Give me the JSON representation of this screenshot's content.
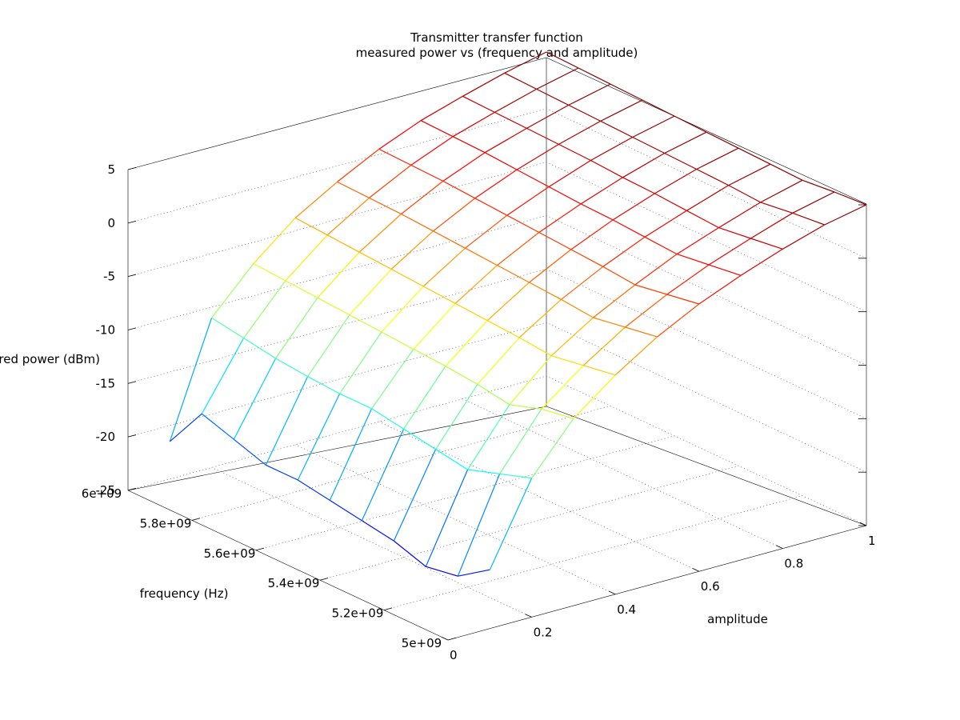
{
  "chart_data": {
    "type": "surface",
    "title": "Transmitter transfer function",
    "subtitle": "measured power vs (frequency and amplitude)",
    "xlabel": "amplitude",
    "ylabel": "frequency (Hz)",
    "zlabel": "measured power (dBm)",
    "xlim": [
      0,
      1
    ],
    "ylim": [
      5000000000,
      6000000000
    ],
    "zlim": [
      -25,
      5
    ],
    "x_ticks": [
      "0",
      "0.2",
      "0.4",
      "0.6",
      "0.8",
      "1"
    ],
    "y_ticks": [
      "5e+09",
      "5.2e+09",
      "5.4e+09",
      "5.6e+09",
      "5.8e+09",
      "6e+09"
    ],
    "z_ticks": [
      "5",
      "0",
      "-5",
      "-10",
      "-15",
      "-20",
      "-25"
    ],
    "colormap": "jet",
    "grid": true,
    "amplitudes": [
      0.1,
      0.2,
      0.3,
      0.4,
      0.5,
      0.6,
      0.7,
      0.8,
      0.9,
      1.0
    ],
    "frequencies": [
      5000000000,
      5100000000,
      5200000000,
      5300000000,
      5400000000,
      5500000000,
      5600000000,
      5700000000,
      5800000000,
      5900000000,
      6000000000
    ],
    "power_dbm": [
      [
        -19.5,
        -12,
        -7.5,
        -4.5,
        -2,
        0,
        1.6,
        3,
        4.2,
        5
      ],
      [
        -21.5,
        -13,
        -8,
        -5,
        -2.5,
        -0.5,
        1.2,
        2.6,
        3.9,
        4.8
      ],
      [
        -22,
        -14,
        -9,
        -5.5,
        -3,
        -1,
        0.8,
        2.2,
        3.5,
        4.5
      ],
      [
        -21,
        -13.5,
        -8.5,
        -5.2,
        -2.7,
        -0.7,
        1,
        2.4,
        3.7,
        4.6
      ],
      [
        -20.5,
        -13,
        -8.2,
        -5,
        -2.5,
        -0.5,
        1.2,
        2.6,
        3.8,
        4.7
      ],
      [
        -20,
        -12.5,
        -8,
        -4.8,
        -2.3,
        -0.3,
        1.3,
        2.7,
        3.9,
        4.8
      ],
      [
        -19.5,
        -12.5,
        -7.8,
        -4.6,
        -2.1,
        -0.1,
        1.5,
        2.9,
        4,
        4.9
      ],
      [
        -19.5,
        -12.3,
        -7.6,
        -4.4,
        -1.9,
        0.1,
        1.7,
        3,
        4.1,
        5
      ],
      [
        -18.5,
        -12,
        -7.4,
        -4.2,
        -1.7,
        0.3,
        1.9,
        3.1,
        4.2,
        5.1
      ],
      [
        -17.5,
        -11.5,
        -7.2,
        -4,
        -1.6,
        0.4,
        2,
        3.2,
        4.3,
        5.2
      ],
      [
        -21.5,
        -11,
        -7,
        -3.8,
        -1.5,
        0.5,
        2.1,
        3.3,
        4.4,
        5.3
      ]
    ]
  }
}
